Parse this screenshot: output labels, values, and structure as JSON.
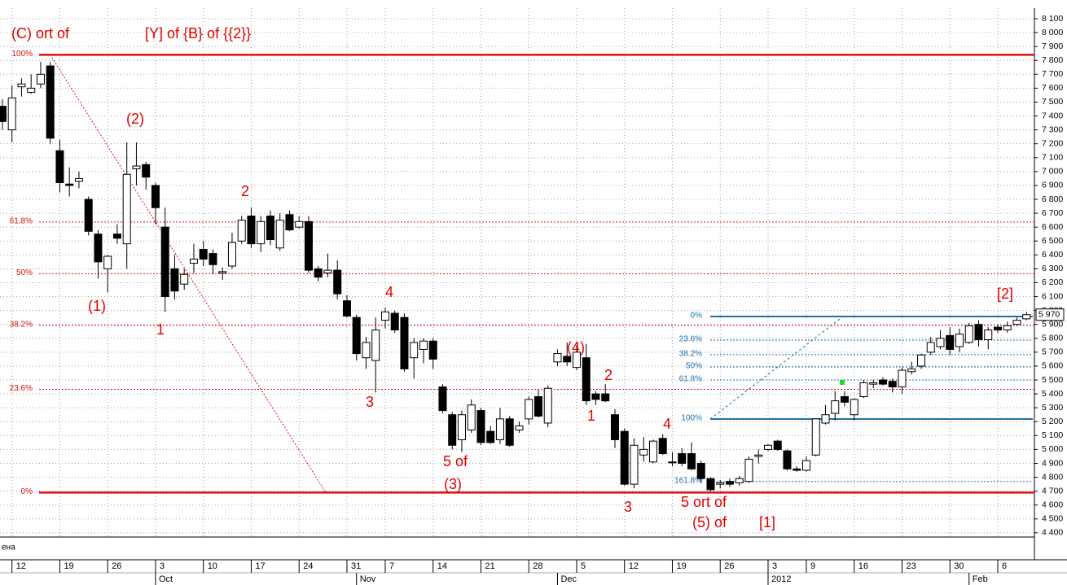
{
  "chart_data": {
    "type": "candlestick",
    "panel_label": "ена",
    "xlim": [
      -0.25,
      107.83
    ],
    "ylim": [
      4370,
      8176
    ],
    "grid": true,
    "up_color": "#ffffff",
    "down_color": "#000000",
    "open": [
      7470,
      7300,
      7610,
      7570,
      7630,
      7760,
      7150,
      6910,
      6930,
      6800,
      6550,
      6300,
      6550,
      6480,
      7020,
      7050,
      6900,
      6600,
      6300,
      6190,
      6340,
      6440,
      6410,
      6270,
      6320,
      6500,
      6680,
      6480,
      6680,
      6450,
      6690,
      6600,
      6640,
      6300,
      6270,
      6290,
      6070,
      5950,
      5660,
      5640,
      5930,
      5980,
      5950,
      5660,
      5720,
      5780,
      5450,
      5250,
      5070,
      5140,
      5280,
      5130,
      5070,
      5220,
      5140,
      5220,
      5380,
      5190,
      5630,
      5670,
      5590,
      5660,
      5400,
      5400,
      5250,
      5130,
      4750,
      4960,
      4910,
      5080,
      4910,
      4970,
      4970,
      4900,
      4790,
      4750,
      4770,
      4760,
      4770,
      4950,
      5000,
      5060,
      4990,
      4860,
      4850,
      4960,
      5190,
      5260,
      5380,
      5250,
      5380,
      5470,
      5500,
      5490,
      5450,
      5560,
      5600,
      5700,
      5740,
      5820,
      5740,
      5770,
      5900,
      5790,
      5880,
      5860,
      5900,
      5940
    ],
    "high": [
      7520,
      7620,
      7670,
      7700,
      7790,
      7790,
      7230,
      7030,
      7000,
      6820,
      6580,
      6400,
      6620,
      7210,
      7210,
      7070,
      6920,
      6740,
      6400,
      6300,
      6480,
      6500,
      6440,
      6310,
      6560,
      6680,
      6740,
      6680,
      6720,
      6700,
      6720,
      6680,
      6680,
      6320,
      6410,
      6360,
      6110,
      5970,
      5810,
      5950,
      6020,
      6000,
      5980,
      5800,
      5800,
      5800,
      5470,
      5270,
      5280,
      5360,
      5300,
      5170,
      5300,
      5240,
      5200,
      5380,
      5430,
      5460,
      5720,
      5770,
      5750,
      5760,
      5420,
      5470,
      5290,
      5150,
      5080,
      5090,
      5070,
      5110,
      4980,
      5010,
      5050,
      4920,
      4800,
      4780,
      4790,
      4810,
      4950,
      5000,
      5040,
      5070,
      5000,
      4880,
      4950,
      5220,
      5320,
      5420,
      5420,
      5370,
      5500,
      5500,
      5520,
      5510,
      5590,
      5630,
      5690,
      5810,
      5860,
      5880,
      5870,
      5910,
      5930,
      5880,
      5900,
      5920,
      5950,
      5990
    ],
    "low": [
      7300,
      7210,
      7540,
      7560,
      7600,
      7200,
      6850,
      6820,
      6880,
      6540,
      6230,
      6130,
      6480,
      6300,
      6900,
      6870,
      6620,
      5990,
      6080,
      6150,
      6270,
      6320,
      6260,
      6220,
      6300,
      6480,
      6450,
      6420,
      6470,
      6430,
      6570,
      6590,
      6270,
      6210,
      6240,
      6080,
      5950,
      5640,
      5580,
      5410,
      5870,
      5840,
      5560,
      5510,
      5620,
      5580,
      5260,
      5000,
      4980,
      5120,
      5030,
      5040,
      5040,
      5020,
      5120,
      5180,
      5230,
      5160,
      5600,
      5600,
      5570,
      5320,
      5320,
      5340,
      5010,
      4740,
      4720,
      4910,
      4900,
      4960,
      4880,
      4880,
      4850,
      4760,
      4700,
      4720,
      4730,
      4740,
      4760,
      4900,
      4990,
      4990,
      4850,
      4840,
      4840,
      4950,
      5180,
      5210,
      5310,
      5210,
      5370,
      5440,
      5460,
      5410,
      5400,
      5540,
      5580,
      5680,
      5720,
      5680,
      5700,
      5760,
      5740,
      5720,
      5840,
      5840,
      5890,
      5930
    ],
    "close": [
      7360,
      7530,
      7630,
      7600,
      7700,
      7240,
      6920,
      6900,
      6950,
      6570,
      6350,
      6390,
      6520,
      6980,
      7040,
      6960,
      6740,
      6100,
      6140,
      6260,
      6370,
      6370,
      6330,
      6280,
      6490,
      6650,
      6480,
      6640,
      6510,
      6650,
      6580,
      6640,
      6290,
      6240,
      6290,
      6120,
      5960,
      5690,
      5770,
      5860,
      5990,
      5860,
      5580,
      5770,
      5780,
      5650,
      5280,
      5030,
      5250,
      5320,
      5050,
      5050,
      5220,
      5030,
      5170,
      5360,
      5240,
      5440,
      5690,
      5630,
      5700,
      5350,
      5360,
      5350,
      5070,
      4750,
      5030,
      5000,
      5060,
      4970,
      4910,
      4900,
      4860,
      4790,
      4710,
      4760,
      4750,
      4790,
      4930,
      4960,
      5030,
      5000,
      4860,
      4850,
      4920,
      5220,
      5250,
      5350,
      5340,
      5360,
      5480,
      5480,
      5470,
      5450,
      5570,
      5580,
      5680,
      5770,
      5800,
      5720,
      5830,
      5890,
      5790,
      5860,
      5860,
      5890,
      5930,
      5970
    ],
    "last_price": {
      "value": 5970,
      "label": "5 970"
    },
    "yticks": [
      {
        "value": 4400,
        "label": "4 400"
      },
      {
        "value": 4500,
        "label": "4 500"
      },
      {
        "value": 4600,
        "label": "4 600"
      },
      {
        "value": 4700,
        "label": "4 700"
      },
      {
        "value": 4800,
        "label": "4 800"
      },
      {
        "value": 4900,
        "label": "4 900"
      },
      {
        "value": 5000,
        "label": "5 000"
      },
      {
        "value": 5100,
        "label": "5 100"
      },
      {
        "value": 5200,
        "label": "5 200"
      },
      {
        "value": 5300,
        "label": "5 300"
      },
      {
        "value": 5400,
        "label": "5 400"
      },
      {
        "value": 5500,
        "label": "5 500"
      },
      {
        "value": 5600,
        "label": "5 600"
      },
      {
        "value": 5700,
        "label": "5 700"
      },
      {
        "value": 5800,
        "label": "5 800"
      },
      {
        "value": 5900,
        "label": "5 900"
      },
      {
        "value": 6000,
        "label": "6 000"
      },
      {
        "value": 6100,
        "label": "6 100"
      },
      {
        "value": 6200,
        "label": "6 200"
      },
      {
        "value": 6300,
        "label": "6 300"
      },
      {
        "value": 6400,
        "label": "6 400"
      },
      {
        "value": 6500,
        "label": "6 500"
      },
      {
        "value": 6600,
        "label": "6 600"
      },
      {
        "value": 6700,
        "label": "6 700"
      },
      {
        "value": 6800,
        "label": "6 800"
      },
      {
        "value": 6900,
        "label": "6 900"
      },
      {
        "value": 7000,
        "label": "7 000"
      },
      {
        "value": 7100,
        "label": "7 100"
      },
      {
        "value": 7200,
        "label": "7 200"
      },
      {
        "value": 7300,
        "label": "7 300"
      },
      {
        "value": 7400,
        "label": "7 400"
      },
      {
        "value": 7500,
        "label": "7 500"
      },
      {
        "value": 7600,
        "label": "7 600"
      },
      {
        "value": 7700,
        "label": "7 700"
      },
      {
        "value": 7800,
        "label": "7 800"
      },
      {
        "value": 7900,
        "label": "7 900"
      },
      {
        "value": 8000,
        "label": "8 000"
      },
      {
        "value": 8100,
        "label": "8 100"
      }
    ],
    "xticks": [
      {
        "value": 1,
        "label": "12"
      },
      {
        "value": 6,
        "label": "19"
      },
      {
        "value": 11,
        "label": "26"
      },
      {
        "value": 16,
        "label": "3"
      },
      {
        "value": 21,
        "label": "10"
      },
      {
        "value": 26,
        "label": "17"
      },
      {
        "value": 31,
        "label": "24"
      },
      {
        "value": 36,
        "label": "31"
      },
      {
        "value": 40,
        "label": "7"
      },
      {
        "value": 45,
        "label": "14"
      },
      {
        "value": 50,
        "label": "21"
      },
      {
        "value": 55,
        "label": "28"
      },
      {
        "value": 60,
        "label": "5"
      },
      {
        "value": 65,
        "label": "12"
      },
      {
        "value": 70,
        "label": "19"
      },
      {
        "value": 75,
        "label": "26"
      },
      {
        "value": 80,
        "label": "3"
      },
      {
        "value": 84,
        "label": "9"
      },
      {
        "value": 89,
        "label": "16"
      },
      {
        "value": 94,
        "label": "23"
      },
      {
        "value": 99,
        "label": "30"
      },
      {
        "value": 104,
        "label": "6"
      }
    ],
    "month_ticks": [
      {
        "value": 16,
        "label": "Oct"
      },
      {
        "value": 37,
        "label": "Nov"
      },
      {
        "value": 58,
        "label": "Dec"
      },
      {
        "value": 80,
        "label": "2012"
      },
      {
        "value": 101,
        "label": "Feb"
      }
    ],
    "retracement_color": "#e01010",
    "retracement_levels": [
      {
        "value": 7840,
        "label": "100%"
      },
      {
        "value": 6637,
        "label": "61.8%"
      },
      {
        "value": 6265,
        "label": "50%"
      },
      {
        "value": 5893,
        "label": "38.2%"
      },
      {
        "value": 5433,
        "label": "23.6%"
      },
      {
        "value": 4690,
        "label": "0%"
      }
    ],
    "projection_color": "#1f6fa8",
    "projection_levels": [
      {
        "value": 5957,
        "label": "0%"
      },
      {
        "value": 5787,
        "label": "23.6%"
      },
      {
        "value": 5682,
        "label": "38.2%"
      },
      {
        "value": 5594,
        "label": "50%"
      },
      {
        "value": 5500,
        "label": "61.8%"
      },
      {
        "value": 5219,
        "label": "100%"
      },
      {
        "value": 4769,
        "label": "161.8%"
      }
    ],
    "annotations": [
      "(C) ort of",
      "[Y] of {B} of {{2}}",
      "(2)",
      "(1)",
      "1",
      "2",
      "4",
      "3",
      "5 of",
      "(3)",
      "(4)",
      "2",
      "1",
      "4",
      "3",
      "5 ort of",
      "(5) of",
      "[1]",
      "[2]"
    ]
  }
}
